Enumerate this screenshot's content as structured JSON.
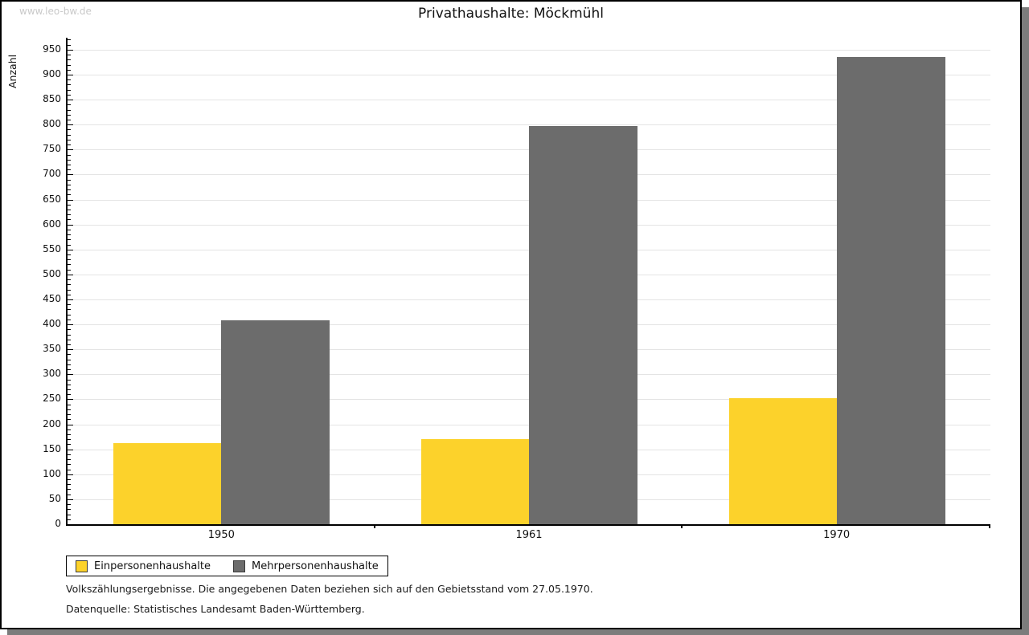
{
  "watermark": "www.leo-bw.de",
  "header": {
    "title": "Privathaushalte: Möckmühl"
  },
  "footnotes": {
    "line1": "Volkszählungsergebnisse. Die angegebenen Daten beziehen sich auf den Gebietsstand vom 27.05.1970.",
    "line2": "Datenquelle: Statistisches Landesamt Baden-Württemberg."
  },
  "colors": {
    "series1": "#fcd22b",
    "series2": "#6c6c6c",
    "gridline": "#e4e4e4",
    "axis": "#000000",
    "shadow": "#7c7c7c",
    "watermark_text": "#c9c9c9"
  },
  "chart_data": {
    "type": "bar",
    "title": "Privathaushalte: Möckmühl",
    "xlabel": "",
    "ylabel": "Anzahl",
    "categories": [
      "1950",
      "1961",
      "1970"
    ],
    "series": [
      {
        "name": "Einpersonenhaushalte",
        "color": "#fcd22b",
        "values": [
          162,
          170,
          252
        ]
      },
      {
        "name": "Mehrpersonenhaushalte",
        "color": "#6c6c6c",
        "values": [
          408,
          797,
          935
        ]
      }
    ],
    "ylim": [
      0,
      974
    ],
    "yticks": [
      0,
      50,
      100,
      150,
      200,
      250,
      300,
      350,
      400,
      450,
      500,
      550,
      600,
      650,
      700,
      750,
      800,
      850,
      900,
      950
    ],
    "ytick_minor_step": 10,
    "grid": true,
    "legend_position": "bottom-left"
  }
}
